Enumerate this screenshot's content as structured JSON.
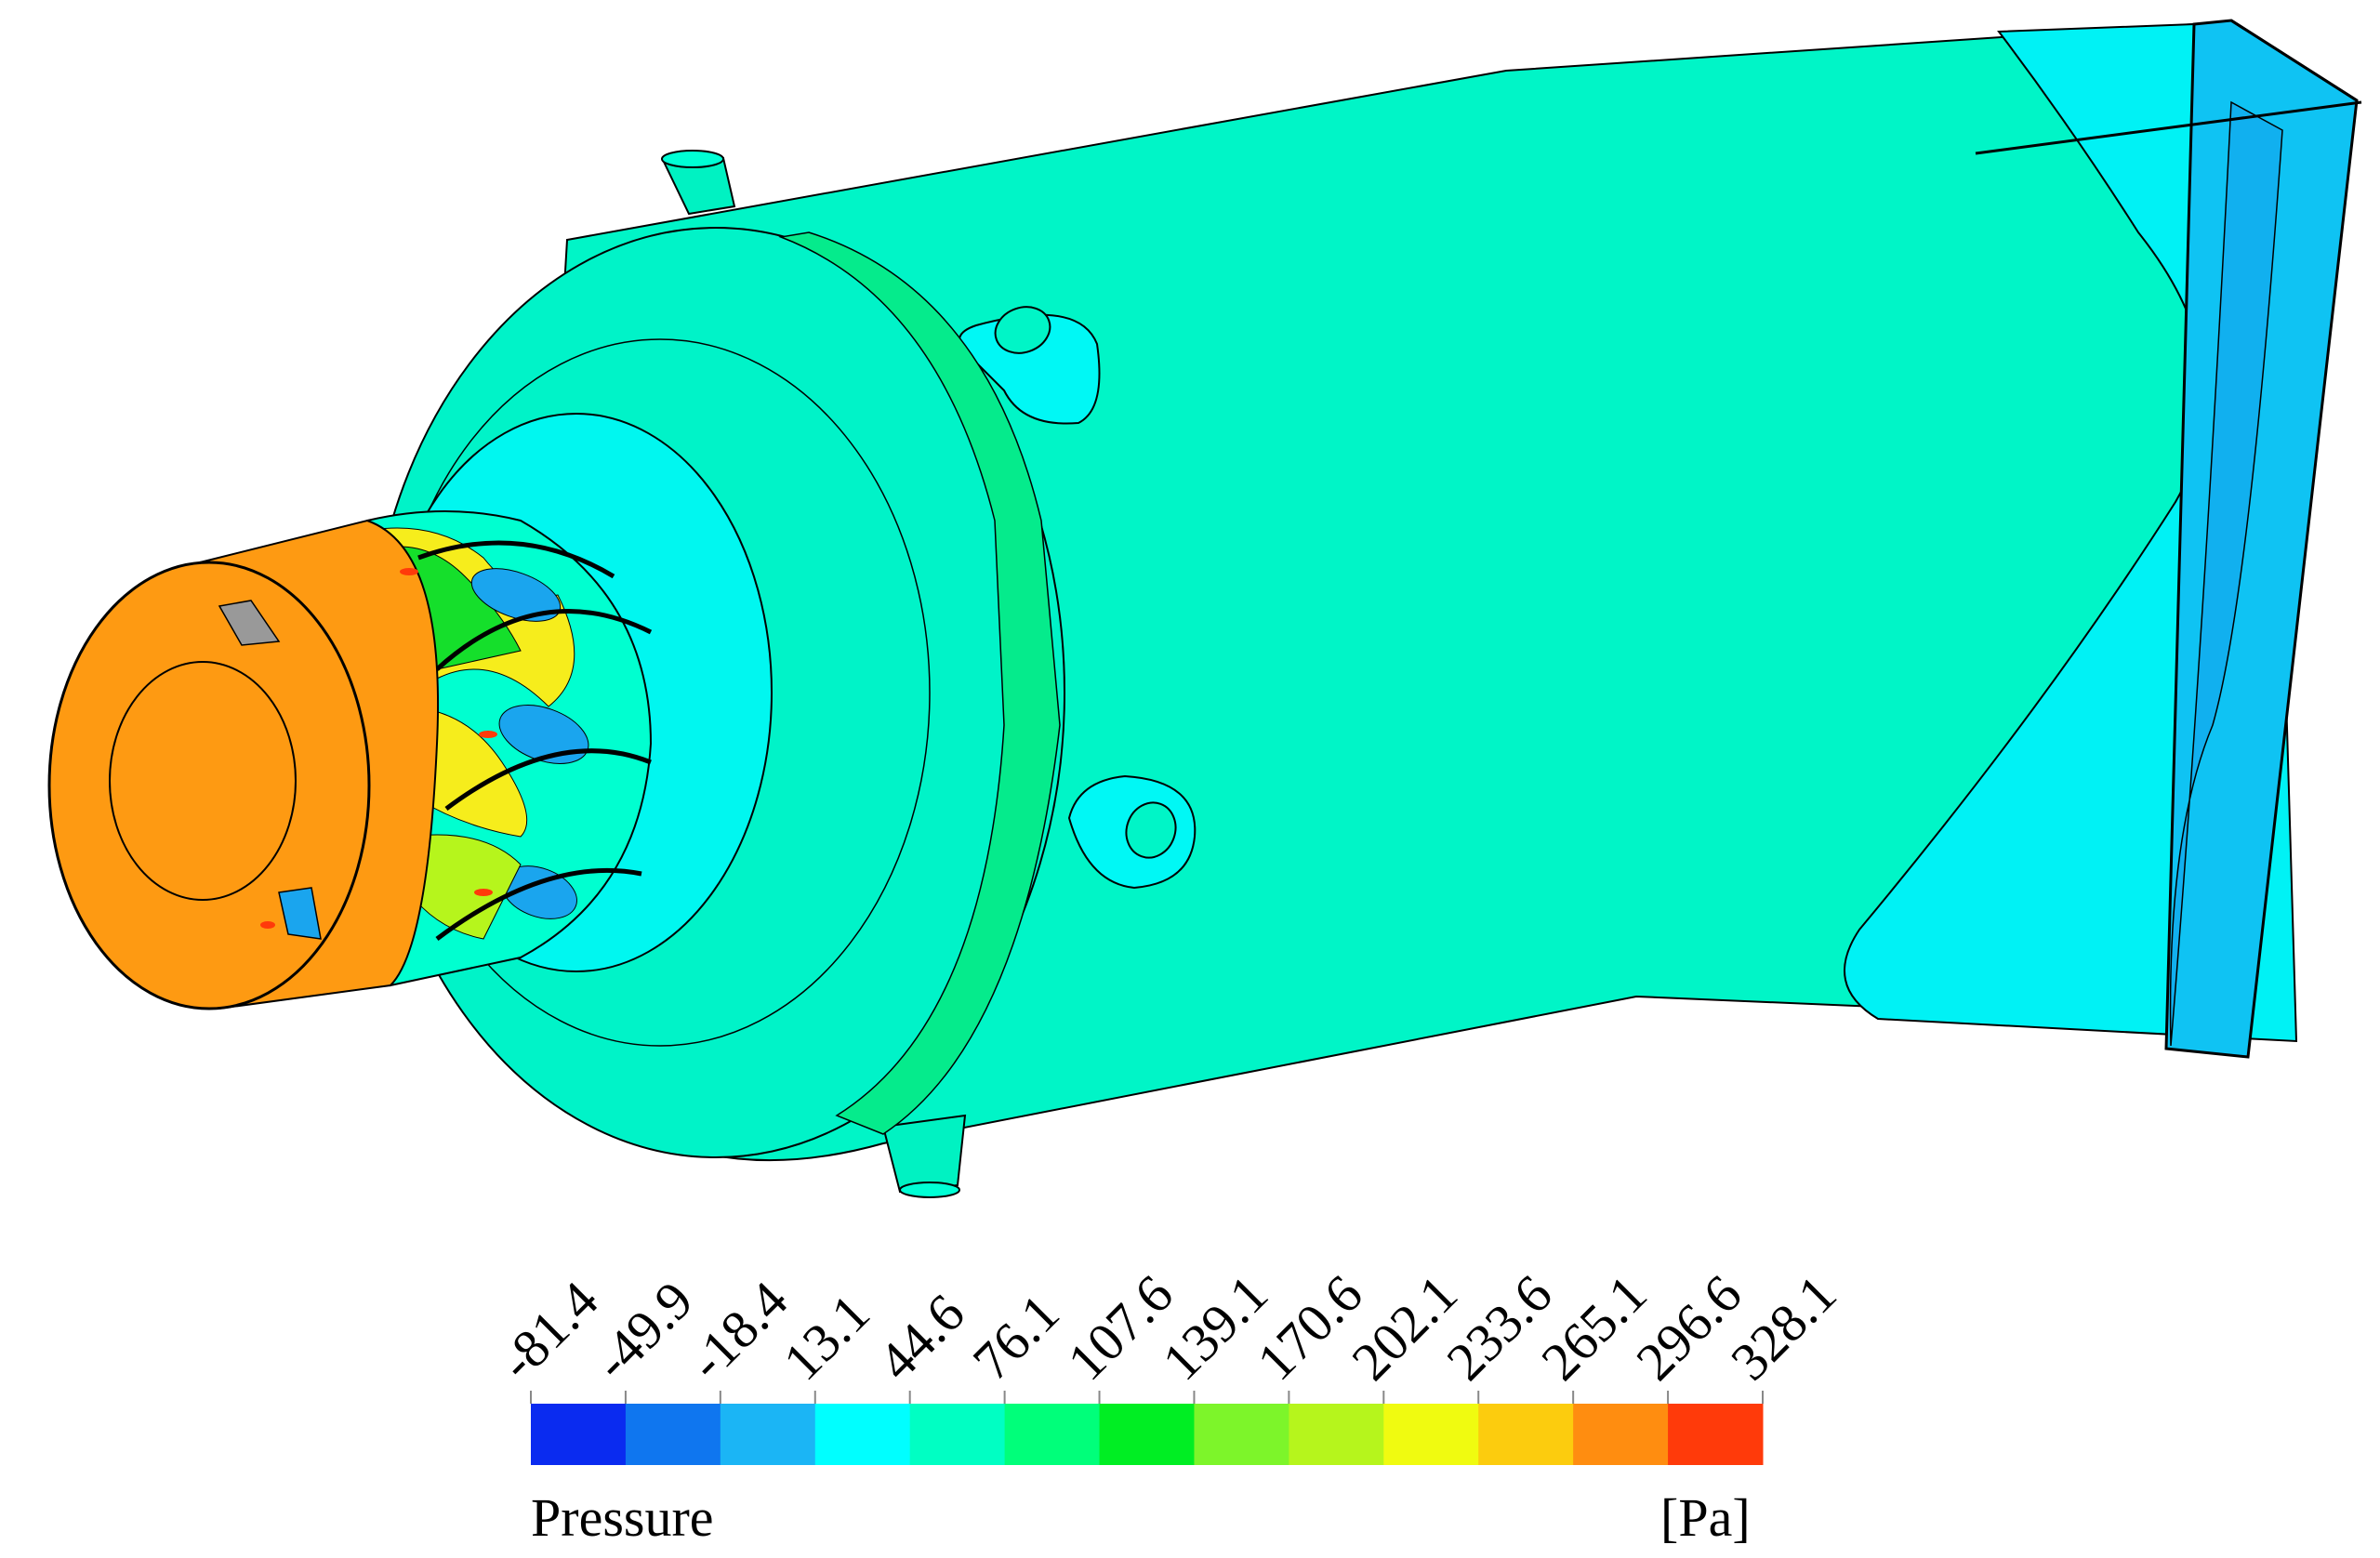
{
  "legend": {
    "title": "Pressure",
    "unit": "[Pa]",
    "ticks": [
      "-81.4",
      "-49.9",
      "-18.4",
      "13.1",
      "44.6",
      "76.1",
      "107.6",
      "139.1",
      "170.6",
      "202.1",
      "233.6",
      "265.1",
      "296.6",
      "328.1"
    ],
    "colors": [
      "#0a2bf0",
      "#0f76ef",
      "#1bb5f5",
      "#00ffff",
      "#00ffc3",
      "#00ff7a",
      "#00ee23",
      "#7df52a",
      "#b6f51c",
      "#f0fb10",
      "#fccc0e",
      "#ff8d10",
      "#ff3a0a"
    ]
  },
  "field_colors": {
    "body": "#00f5c7",
    "ring": "#05eb8c",
    "outer_face": "#00f3c8",
    "inner_face": "#00f7f0",
    "outlet_mid": "#00f0f5",
    "outlet_edge": "#0fc3f3",
    "nozzle": "#fe9a12",
    "low": "#1aa5ee",
    "mid_high": "#f6ed1c",
    "green": "#15df2b"
  }
}
